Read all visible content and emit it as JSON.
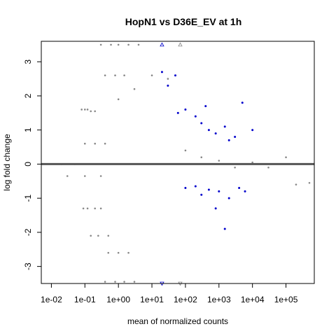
{
  "chart_data": {
    "type": "scatter",
    "title": "HopN1 vs D36E_EV at 1h",
    "xlabel": "mean of normalized counts",
    "ylabel": "log fold change",
    "x_scale": "log10",
    "xlim": [
      0.005,
      700000
    ],
    "ylim": [
      -3.5,
      3.6
    ],
    "x_ticks": [
      0.01,
      0.1,
      1,
      10,
      100,
      1000,
      10000,
      100000
    ],
    "x_tick_labels": [
      "1e-02",
      "1e-01",
      "1e+00",
      "1e+01",
      "1e+02",
      "1e+03",
      "1e+04",
      "1e+05"
    ],
    "y_ticks": [
      -3,
      -2,
      -1,
      0,
      1,
      2,
      3
    ],
    "y_tick_labels": [
      "-3",
      "-2",
      "-1",
      "0",
      "1",
      "2",
      "3"
    ],
    "grid": false,
    "legend": "none",
    "reference_line": {
      "y": 0,
      "color": "#555555"
    },
    "colors": {
      "not_significant": "#888888",
      "significant": "#0000cc",
      "frame": "#000000"
    },
    "series": [
      {
        "values_summary": "non-significant genes, grey points",
        "points": [
          [
            0.08,
            1.6
          ],
          [
            0.1,
            1.6
          ],
          [
            0.12,
            1.6
          ],
          [
            0.15,
            1.55
          ],
          [
            0.2,
            1.55
          ],
          [
            0.09,
            -1.3
          ],
          [
            0.12,
            -1.3
          ],
          [
            0.2,
            -1.3
          ],
          [
            0.3,
            -1.3
          ],
          [
            0.1,
            0.6
          ],
          [
            0.2,
            0.6
          ],
          [
            0.4,
            0.6
          ],
          [
            0.03,
            -0.35
          ],
          [
            0.1,
            -0.35
          ],
          [
            0.3,
            -0.35
          ],
          [
            0.02,
            0
          ],
          [
            0.05,
            0
          ],
          [
            0.15,
            -2.1
          ],
          [
            0.25,
            -2.1
          ],
          [
            0.5,
            -2.1
          ],
          [
            0.3,
            3.5
          ],
          [
            0.6,
            3.5
          ],
          [
            1,
            3.5
          ],
          [
            2,
            3.5
          ],
          [
            4,
            3.5
          ],
          [
            0.4,
            -3.45
          ],
          [
            0.8,
            -3.45
          ],
          [
            1.5,
            -3.45
          ],
          [
            3,
            -3.45
          ],
          [
            0.4,
            2.6
          ],
          [
            0.8,
            2.6
          ],
          [
            1.5,
            2.6
          ],
          [
            0.5,
            -2.6
          ],
          [
            1,
            -2.6
          ],
          [
            2,
            -2.6
          ],
          [
            1,
            1.9
          ],
          [
            3,
            2.2
          ],
          [
            10,
            2.6
          ],
          [
            30,
            2.5
          ],
          [
            100,
            0.4
          ],
          [
            300,
            0.2
          ],
          [
            1000,
            0.1
          ],
          [
            3000,
            -0.1
          ],
          [
            10000,
            0.05
          ],
          [
            30000,
            -0.1
          ],
          [
            100000,
            0.2
          ],
          [
            200000,
            -0.6
          ],
          [
            500000,
            -0.55
          ]
        ]
      },
      {
        "values_summary": "significant genes, blue points",
        "points": [
          [
            20,
            2.7
          ],
          [
            50,
            2.6
          ],
          [
            30,
            2.3
          ],
          [
            60,
            1.5
          ],
          [
            100,
            1.6
          ],
          [
            200,
            1.4
          ],
          [
            300,
            1.2
          ],
          [
            500,
            1.0
          ],
          [
            800,
            0.9
          ],
          [
            1500,
            1.1
          ],
          [
            3000,
            0.8
          ],
          [
            5000,
            1.8
          ],
          [
            10000,
            1.0
          ],
          [
            400,
            1.7
          ],
          [
            2000,
            0.7
          ],
          [
            100,
            -0.7
          ],
          [
            200,
            -0.65
          ],
          [
            500,
            -0.75
          ],
          [
            1000,
            -0.8
          ],
          [
            2000,
            -1.0
          ],
          [
            4000,
            -0.7
          ],
          [
            800,
            -1.3
          ],
          [
            300,
            -0.9
          ],
          [
            1500,
            -1.9
          ],
          [
            6000,
            -0.8
          ]
        ]
      }
    ],
    "triangles": [
      {
        "x": 20,
        "y": 3.5,
        "color": "#0000cc"
      },
      {
        "x": 70,
        "y": 3.5,
        "color": "#888888"
      },
      {
        "x": 20,
        "y": -3.5,
        "color": "#0000cc"
      },
      {
        "x": 70,
        "y": -3.5,
        "color": "#888888"
      }
    ]
  }
}
